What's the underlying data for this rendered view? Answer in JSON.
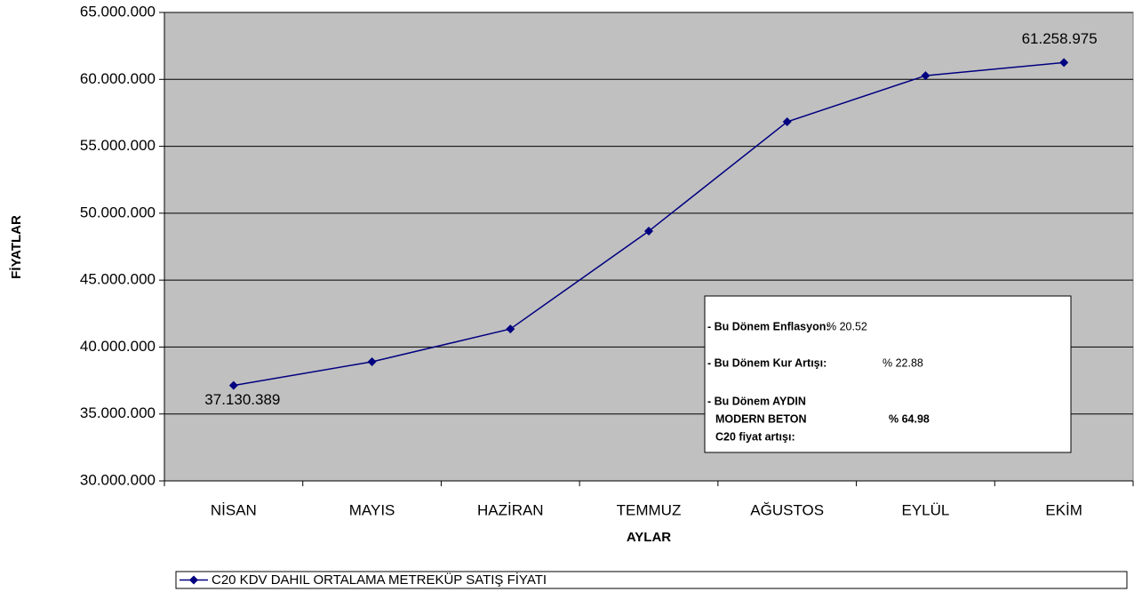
{
  "chart_data": {
    "type": "line",
    "x_label": "AYLAR",
    "y_label": "FİYATLAR",
    "categories": [
      "NİSAN",
      "MAYIS",
      "HAZİRAN",
      "TEMMUZ",
      "AĞUSTOS",
      "EYLÜL",
      "EKİM"
    ],
    "series": [
      {
        "name": "C20 KDV DAHIL ORTALAMA METREKÜP SATIŞ FİYATI",
        "color": "#000080",
        "values": [
          37130389,
          38900000,
          41350000,
          48660000,
          56830000,
          60280000,
          61258975
        ],
        "value_labels": [
          "37.130.389",
          null,
          null,
          null,
          null,
          null,
          "61.258.975"
        ]
      }
    ],
    "ylim": [
      30000000,
      65000000
    ],
    "yticks": [
      {
        "value": 30000000,
        "label": "30.000.000"
      },
      {
        "value": 35000000,
        "label": "35.000.000"
      },
      {
        "value": 40000000,
        "label": "40.000.000"
      },
      {
        "value": 45000000,
        "label": "45.000.000"
      },
      {
        "value": 50000000,
        "label": "50.000.000"
      },
      {
        "value": 55000000,
        "label": "55.000.000"
      },
      {
        "value": 60000000,
        "label": "60.000.000"
      },
      {
        "value": 65000000,
        "label": "65.000.000"
      }
    ],
    "grid": true,
    "plot_background": "#c0c0c0",
    "legend": "bottom",
    "annotation": {
      "items": [
        {
          "label_lines": [
            "- Bu Dönem Enflasyon:"
          ],
          "value": "% 20.52"
        },
        {
          "label_lines": [
            "- Bu Dönem Kur Artışı:"
          ],
          "value": "% 22.88"
        },
        {
          "label_lines": [
            "- Bu Dönem AYDIN",
            "MODERN BETON",
            "C20 fiyat artışı:"
          ],
          "value": "% 64.98"
        }
      ]
    }
  }
}
